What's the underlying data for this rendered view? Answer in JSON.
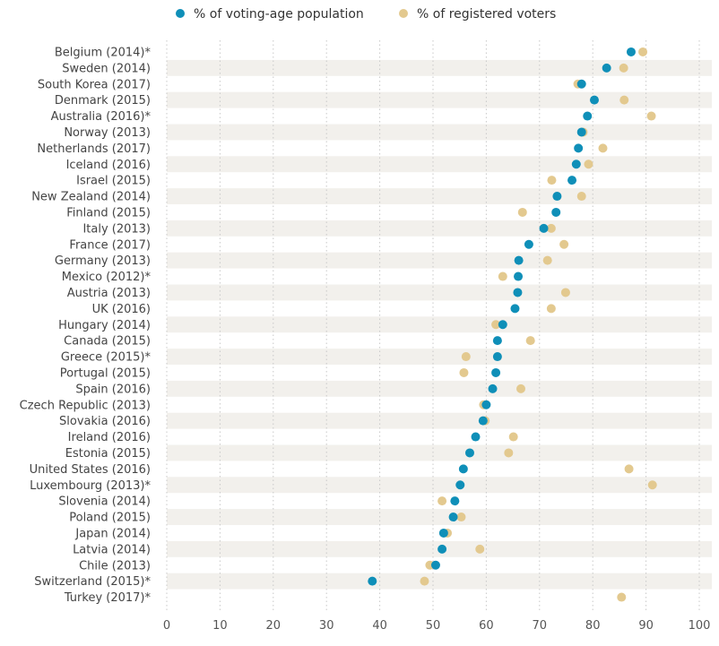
{
  "chart_data": {
    "type": "scatter",
    "legend": {
      "position": "top",
      "items": [
        {
          "label": "% of voting-age population",
          "color": "#0f8fb8"
        },
        {
          "label": "% of registered voters",
          "color": "#e3c98f"
        }
      ]
    },
    "categories": [
      "Belgium (2014)*",
      "Sweden (2014)",
      "South Korea (2017)",
      "Denmark (2015)",
      "Australia (2016)*",
      "Norway (2013)",
      "Netherlands (2017)",
      "Iceland (2016)",
      "Israel (2015)",
      "New Zealand (2014)",
      "Finland (2015)",
      "Italy (2013)",
      "France (2017)",
      "Germany (2013)",
      "Mexico (2012)*",
      "Austria (2013)",
      "UK (2016)",
      "Hungary (2014)",
      "Canada (2015)",
      "Greece (2015)*",
      "Portugal (2015)",
      "Spain (2016)",
      "Czech Republic (2013)",
      "Slovakia (2016)",
      "Ireland (2016)",
      "Estonia (2015)",
      "United States (2016)",
      "Luxembourg (2013)*",
      "Slovenia (2014)",
      "Poland (2015)",
      "Japan (2014)",
      "Latvia (2014)",
      "Chile (2013)",
      "Switzerland (2015)*",
      "Turkey (2017)*"
    ],
    "series": [
      {
        "name": "% of voting-age population",
        "color": "#0f8fb8",
        "values": [
          87.2,
          82.6,
          77.9,
          80.3,
          79.0,
          77.9,
          77.3,
          76.9,
          76.1,
          73.3,
          73.1,
          70.8,
          68.0,
          66.1,
          66.0,
          65.9,
          65.4,
          63.1,
          62.1,
          62.1,
          61.8,
          61.2,
          60.0,
          59.4,
          58.0,
          56.9,
          55.7,
          55.1,
          54.1,
          53.8,
          52.0,
          51.7,
          50.5,
          38.6,
          null
        ]
      },
      {
        "name": "% of registered voters",
        "color": "#e3c98f",
        "values": [
          89.4,
          85.8,
          77.2,
          85.9,
          91.0,
          78.2,
          81.9,
          79.2,
          72.3,
          77.9,
          66.8,
          72.2,
          74.6,
          71.5,
          63.1,
          74.9,
          72.2,
          61.8,
          68.3,
          56.2,
          55.8,
          66.5,
          59.5,
          59.8,
          65.1,
          64.2,
          86.8,
          91.2,
          51.7,
          55.3,
          52.7,
          58.8,
          49.4,
          48.4,
          85.4
        ]
      }
    ],
    "xlim": [
      0,
      100
    ],
    "xticks": [
      "0",
      "10",
      "20",
      "30",
      "40",
      "50",
      "60",
      "70",
      "80",
      "90",
      "100"
    ],
    "grid": true
  }
}
